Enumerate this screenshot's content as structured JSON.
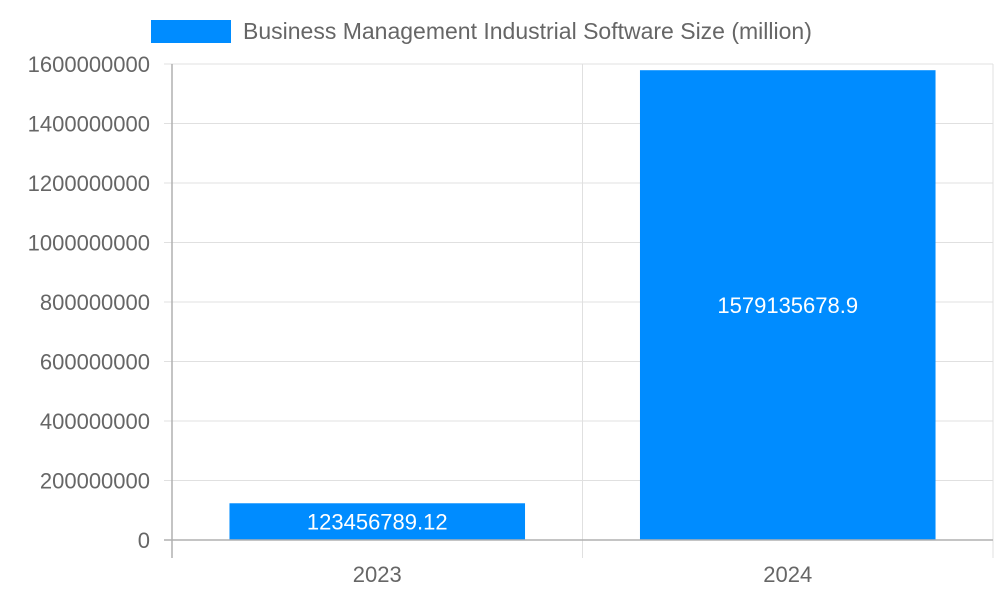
{
  "chart_data": {
    "type": "bar",
    "title": "",
    "xlabel": "",
    "ylabel": "",
    "categories": [
      "2023",
      "2024"
    ],
    "series": [
      {
        "name": "Business Management Industrial Software Size (million)",
        "values": [
          123456789.12,
          1579135678.9
        ],
        "labels": [
          "123456789.12",
          "1579135678.9"
        ]
      }
    ],
    "ylim": [
      0,
      1600000000
    ],
    "yticks": [
      0,
      200000000,
      400000000,
      600000000,
      800000000,
      1000000000,
      1200000000,
      1400000000,
      1600000000
    ],
    "grid": true,
    "legend_position": "top",
    "colors": {
      "bar": "#008cff",
      "text": "#666666",
      "grid": "#e0e0e0",
      "axis": "#b0b0b0"
    }
  }
}
